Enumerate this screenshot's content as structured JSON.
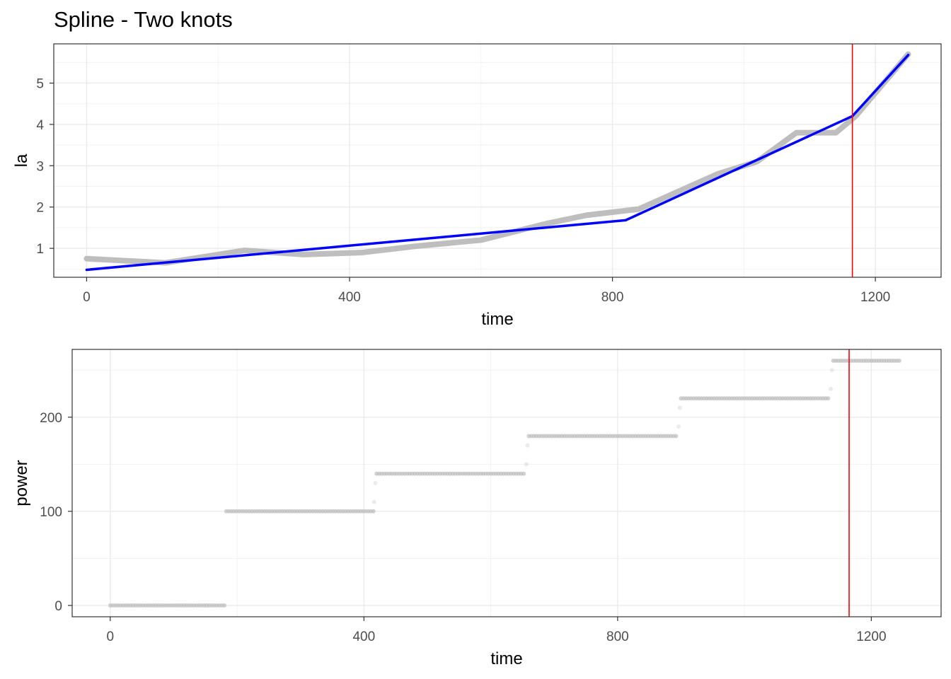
{
  "title": "Spline - Two knots",
  "chart_data": [
    {
      "type": "line",
      "xlabel": "time",
      "ylabel": "la",
      "xlim": [
        -50,
        1300
      ],
      "ylim": [
        0.3,
        5.95
      ],
      "xticks": [
        0,
        400,
        800,
        1200
      ],
      "yticks": [
        1,
        2,
        3,
        4,
        5
      ],
      "grid": true,
      "series": [
        {
          "color": "#bebebe",
          "x": [
            0,
            120,
            240,
            330,
            420,
            500,
            600,
            700,
            760,
            840,
            960,
            1020,
            1080,
            1140,
            1170,
            1250
          ],
          "y": [
            0.75,
            0.65,
            0.95,
            0.85,
            0.9,
            1.05,
            1.2,
            1.6,
            1.8,
            1.95,
            2.8,
            3.1,
            3.8,
            3.8,
            4.2,
            5.7
          ]
        },
        {
          "color": "#0000ff",
          "x": [
            0,
            820,
            1165,
            1250
          ],
          "y": [
            0.48,
            1.68,
            4.2,
            5.68
          ]
        }
      ],
      "vline": {
        "x": 1165,
        "color": "#ff0000"
      }
    },
    {
      "type": "scatter",
      "xlabel": "time",
      "ylabel": "power",
      "xlim": [
        -60,
        1310
      ],
      "ylim": [
        -12,
        272
      ],
      "xticks": [
        0,
        400,
        800,
        1200
      ],
      "yticks": [
        0,
        100,
        200
      ],
      "grid": true,
      "series": [
        {
          "color": "#bebebe",
          "steps": [
            {
              "from": 0,
              "to": 180,
              "y": 0
            },
            {
              "from": 183,
              "to": 415,
              "y": 100
            },
            {
              "from": 420,
              "to": 655,
              "y": 140
            },
            {
              "from": 660,
              "to": 895,
              "y": 180
            },
            {
              "from": 900,
              "to": 1135,
              "y": 220
            },
            {
              "from": 1140,
              "to": 1245,
              "y": 260
            }
          ],
          "transitions": [
            {
              "x": 416,
              "y": 110
            },
            {
              "x": 418,
              "y": 130
            },
            {
              "x": 656,
              "y": 150
            },
            {
              "x": 658,
              "y": 170
            },
            {
              "x": 896,
              "y": 190
            },
            {
              "x": 898,
              "y": 210
            },
            {
              "x": 1136,
              "y": 230
            },
            {
              "x": 1138,
              "y": 250
            }
          ]
        }
      ],
      "vline": {
        "x": 1165,
        "color": "#ff0000"
      }
    }
  ]
}
